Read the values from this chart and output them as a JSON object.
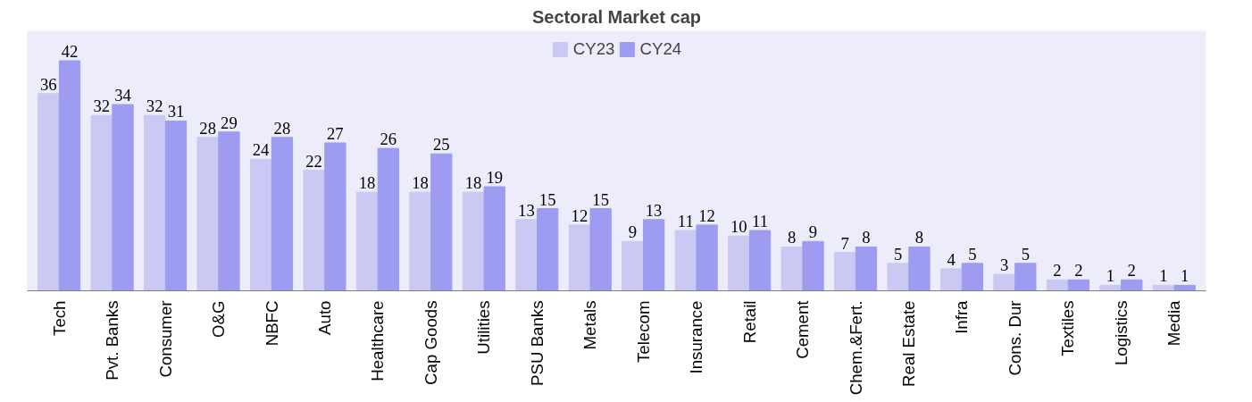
{
  "chart_data": {
    "type": "bar",
    "title": "Sectoral Market cap",
    "categories": [
      "Tech",
      "Pvt. Banks",
      "Consumer",
      "O&G",
      "NBFC",
      "Auto",
      "Healthcare",
      "Cap Goods",
      "Utilities",
      "PSU Banks",
      "Metals",
      "Telecom",
      "Insurance",
      "Retail",
      "Cement",
      "Chem.&Fert.",
      "Real Estate",
      "Infra",
      "Cons. Dur",
      "Textiles",
      "Logistics",
      "Media"
    ],
    "series": [
      {
        "name": "CY23",
        "color": "#c9c9f4",
        "values": [
          36,
          32,
          32,
          28,
          24,
          22,
          18,
          18,
          18,
          13,
          12,
          9,
          11,
          10,
          8,
          7,
          5,
          4,
          3,
          2,
          1,
          1
        ]
      },
      {
        "name": "CY24",
        "color": "#9d9cf1",
        "values": [
          42,
          34,
          31,
          29,
          28,
          27,
          26,
          25,
          19,
          15,
          15,
          13,
          12,
          11,
          9,
          8,
          8,
          5,
          5,
          2,
          2,
          1
        ]
      }
    ],
    "data_labels": true,
    "legend": "top",
    "grid": false
  }
}
